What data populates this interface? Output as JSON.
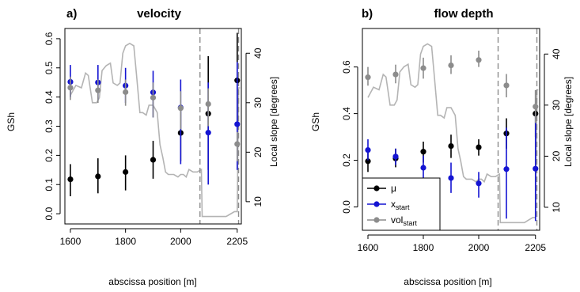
{
  "chart_data": [
    {
      "type": "scatter",
      "panel_label": "a)",
      "title": "velocity",
      "xlabel": "abscissa position [m]",
      "ylabel": "GSh",
      "y2label": "Local slope [degrees]",
      "xticks": [
        "1600",
        "1800",
        "2000",
        "2205"
      ],
      "xtick_values": [
        1600,
        1800,
        2000,
        2205
      ],
      "yticks": [
        "0.0",
        "0.1",
        "0.2",
        "0.3",
        "0.4",
        "0.5",
        "0.6"
      ],
      "ytick_values": [
        0,
        0.1,
        0.2,
        0.3,
        0.4,
        0.5,
        0.6
      ],
      "y2ticks": [
        "10",
        "20",
        "30",
        "40"
      ],
      "y2tick_values": [
        10,
        20,
        30,
        40
      ],
      "xlim": [
        1580,
        2220
      ],
      "ylim": [
        -0.035,
        0.635
      ],
      "y2lim": [
        5.5,
        45
      ],
      "dashed_vlines": [
        2070,
        2210
      ],
      "colors": {
        "mu": "#000000",
        "x_start": "#1414d2",
        "vol_start": "#8c8c8c",
        "slope": "#b4b4b4",
        "dash": "#8c8c8c"
      },
      "series": [
        {
          "key": "mu",
          "x": [
            1600,
            1700,
            1800,
            1900,
            2000,
            2100,
            2205
          ],
          "y": [
            0.118,
            0.128,
            0.143,
            0.185,
            0.277,
            0.343,
            0.457
          ],
          "lo": [
            0.06,
            0.07,
            0.08,
            0.12,
            0.18,
            0.15,
            0.3
          ],
          "hi": [
            0.17,
            0.19,
            0.2,
            0.25,
            0.37,
            0.54,
            0.62
          ]
        },
        {
          "key": "x_start",
          "x": [
            1600,
            1700,
            1800,
            1900,
            2000,
            2100,
            2205
          ],
          "y": [
            0.452,
            0.45,
            0.439,
            0.416,
            0.364,
            0.278,
            0.307
          ],
          "lo": [
            0.4,
            0.39,
            0.38,
            0.33,
            0.17,
            0.1,
            0.15
          ],
          "hi": [
            0.51,
            0.51,
            0.5,
            0.49,
            0.46,
            0.45,
            0.52
          ]
        },
        {
          "key": "vol_start",
          "x": [
            1600,
            1700,
            1800,
            1900,
            2000,
            2100,
            2205
          ],
          "y": [
            0.432,
            0.423,
            0.417,
            0.398,
            0.362,
            0.376,
            0.239
          ],
          "lo": [
            0.39,
            0.38,
            0.37,
            0.33,
            0.29,
            0.3,
            0.18
          ],
          "hi": [
            0.47,
            0.46,
            0.46,
            0.45,
            0.42,
            0.43,
            0.28
          ]
        }
      ],
      "slope_profile": {
        "x": [
          1600,
          1620,
          1640,
          1655,
          1665,
          1680,
          1695,
          1705,
          1715,
          1730,
          1745,
          1755,
          1770,
          1780,
          1790,
          1800,
          1815,
          1830,
          1840,
          1852,
          1862,
          1875,
          1885,
          1900,
          1915,
          1925,
          1935,
          1945,
          1955,
          1965,
          1975,
          1990,
          2000,
          2010,
          2020,
          2030,
          2045,
          2060,
          2075,
          2078,
          2090,
          2110,
          2130,
          2150,
          2165,
          2180,
          2195,
          2205,
          2210,
          2215
        ],
        "y": [
          31.5,
          33.5,
          33.0,
          36.0,
          35.5,
          30.0,
          30.0,
          31.0,
          36.5,
          37.5,
          38.0,
          34.0,
          33.5,
          34.0,
          40.0,
          41.5,
          42.0,
          41.5,
          35.5,
          28.0,
          28.0,
          27.5,
          29.5,
          29.5,
          28.0,
          21.5,
          19.0,
          16.0,
          15.5,
          15.5,
          15.5,
          15.0,
          15.5,
          15.5,
          15.0,
          16.5,
          16.0,
          16.0,
          16.5,
          7.0,
          7.0,
          7.0,
          7.0,
          7.0,
          7.0,
          7.5,
          8.0,
          8.0,
          33.0,
          33.0
        ]
      }
    },
    {
      "type": "scatter",
      "panel_label": "b)",
      "title": "flow depth",
      "xlabel": "abscissa position [m]",
      "ylabel": "GSh",
      "y2label": "Local slope [degrees]",
      "xticks": [
        "1600",
        "1800",
        "2000",
        "2205"
      ],
      "xtick_values": [
        1600,
        1800,
        2000,
        2205
      ],
      "yticks": [
        "0.0",
        "0.2",
        "0.4",
        "0.6"
      ],
      "ytick_values": [
        0,
        0.2,
        0.4,
        0.6
      ],
      "y2ticks": [
        "10",
        "20",
        "30",
        "40"
      ],
      "y2tick_values": [
        10,
        20,
        30,
        40
      ],
      "xlim": [
        1580,
        2220
      ],
      "ylim": [
        -0.1,
        0.765
      ],
      "y2lim": [
        5.5,
        45
      ],
      "dashed_vlines": [
        2070,
        2210
      ],
      "colors": {
        "mu": "#000000",
        "x_start": "#1414d2",
        "vol_start": "#8c8c8c",
        "slope": "#b4b4b4",
        "dash": "#8c8c8c"
      },
      "legend": {
        "placement": "bottom-left",
        "entries": [
          {
            "key": "mu",
            "label": "μ"
          },
          {
            "key": "x_start",
            "label": "x",
            "sub": "start"
          },
          {
            "key": "vol_start",
            "label": "vol",
            "sub": "start"
          }
        ]
      },
      "series": [
        {
          "key": "mu",
          "x": [
            1600,
            1700,
            1800,
            1900,
            2000,
            2100,
            2205
          ],
          "y": [
            0.196,
            0.208,
            0.237,
            0.261,
            0.256,
            0.315,
            0.4
          ],
          "lo": [
            0.15,
            0.17,
            0.19,
            0.21,
            0.22,
            0.25,
            0.3
          ],
          "hi": [
            0.24,
            0.25,
            0.28,
            0.31,
            0.29,
            0.38,
            0.5
          ]
        },
        {
          "key": "x_start",
          "x": [
            1600,
            1700,
            1800,
            1900,
            2000,
            2100,
            2205
          ],
          "y": [
            0.244,
            0.216,
            0.168,
            0.124,
            0.101,
            0.162,
            0.164
          ],
          "lo": [
            0.2,
            0.18,
            0.11,
            0.06,
            0.04,
            -0.05,
            -0.06
          ],
          "hi": [
            0.29,
            0.25,
            0.22,
            0.19,
            0.15,
            0.34,
            0.4
          ]
        },
        {
          "key": "vol_start",
          "x": [
            1600,
            1700,
            1800,
            1900,
            2000,
            2100,
            2205
          ],
          "y": [
            0.556,
            0.568,
            0.595,
            0.607,
            0.63,
            0.521,
            0.43
          ],
          "lo": [
            0.52,
            0.53,
            0.55,
            0.57,
            0.6,
            0.47,
            0.36
          ],
          "hi": [
            0.6,
            0.61,
            0.64,
            0.65,
            0.67,
            0.57,
            0.5
          ]
        }
      ],
      "slope_profile": {
        "x": [
          1600,
          1620,
          1640,
          1655,
          1665,
          1680,
          1695,
          1705,
          1715,
          1730,
          1745,
          1755,
          1770,
          1780,
          1790,
          1800,
          1815,
          1830,
          1840,
          1852,
          1862,
          1875,
          1885,
          1900,
          1915,
          1925,
          1935,
          1945,
          1955,
          1965,
          1975,
          1990,
          2000,
          2010,
          2020,
          2030,
          2045,
          2060,
          2075,
          2078,
          2090,
          2110,
          2130,
          2150,
          2165,
          2180,
          2195,
          2205,
          2210,
          2215
        ],
        "y": [
          31.5,
          33.5,
          33.0,
          36.0,
          35.5,
          30.0,
          30.0,
          31.0,
          36.5,
          37.5,
          38.0,
          34.0,
          33.5,
          34.0,
          40.0,
          41.5,
          42.0,
          41.5,
          35.5,
          28.0,
          28.0,
          27.5,
          29.5,
          29.5,
          28.0,
          21.5,
          19.0,
          16.0,
          15.5,
          15.5,
          15.5,
          15.0,
          15.5,
          15.5,
          15.0,
          16.5,
          16.0,
          16.0,
          16.5,
          7.0,
          7.0,
          7.0,
          7.0,
          7.0,
          7.0,
          7.5,
          8.0,
          8.0,
          33.0,
          33.0
        ]
      }
    }
  ]
}
